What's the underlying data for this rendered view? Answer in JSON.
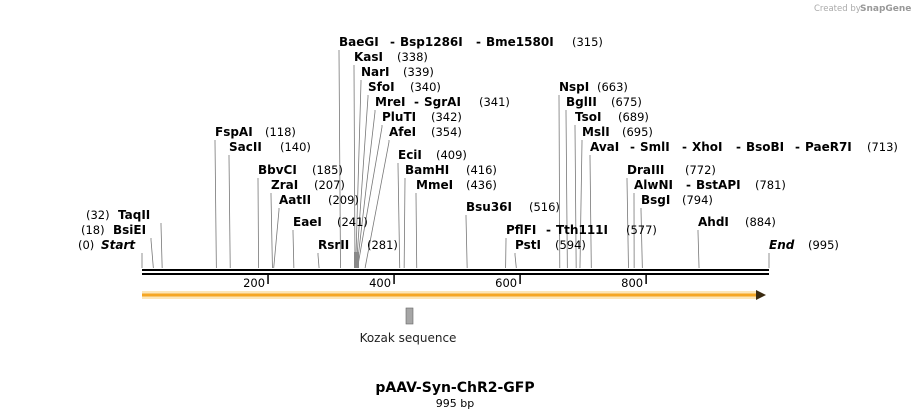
{
  "credit": {
    "prefix": "Created by",
    "brand": "SnapGene"
  },
  "map": {
    "length": 995,
    "title": "pAAV-Syn-ChR2-GFP",
    "subtitle": "995 bp",
    "start_label": "Start",
    "start_pos": "(0)",
    "end_label": "End",
    "end_pos": "(995)",
    "ruler_ticks": [
      {
        "pos": 200,
        "label": "200"
      },
      {
        "pos": 400,
        "label": "400"
      },
      {
        "pos": 600,
        "label": "600"
      },
      {
        "pos": 800,
        "label": "800"
      }
    ],
    "separator": "-",
    "sites": [
      {
        "names": [
          "BaeGI",
          "Bsp1286I",
          "Bme1580I"
        ],
        "pos": 315,
        "pos_label": "(315)"
      },
      {
        "names": [
          "KasI"
        ],
        "pos": 338,
        "pos_label": "(338)"
      },
      {
        "names": [
          "NarI"
        ],
        "pos": 339,
        "pos_label": "(339)"
      },
      {
        "names": [
          "SfoI"
        ],
        "pos": 340,
        "pos_label": "(340)"
      },
      {
        "names": [
          "MreI",
          "SgrAI"
        ],
        "pos": 341,
        "pos_label": "(341)"
      },
      {
        "names": [
          "PluTI"
        ],
        "pos": 342,
        "pos_label": "(342)"
      },
      {
        "names": [
          "AfeI"
        ],
        "pos": 354,
        "pos_label": "(354)"
      },
      {
        "names": [
          "FspAI"
        ],
        "pos": 118,
        "pos_label": "(118)"
      },
      {
        "names": [
          "SacII"
        ],
        "pos": 140,
        "pos_label": "(140)"
      },
      {
        "names": [
          "BbvCI"
        ],
        "pos": 185,
        "pos_label": "(185)"
      },
      {
        "names": [
          "ZraI"
        ],
        "pos": 207,
        "pos_label": "(207)"
      },
      {
        "names": [
          "AatII"
        ],
        "pos": 209,
        "pos_label": "(209)"
      },
      {
        "names": [
          "EaeI"
        ],
        "pos": 241,
        "pos_label": "(241)"
      },
      {
        "names": [
          "RsrII"
        ],
        "pos": 281,
        "pos_label": "(281)"
      },
      {
        "names": [
          "TaqII"
        ],
        "pos": 32,
        "pos_label": "(32)"
      },
      {
        "names": [
          "BsiEI"
        ],
        "pos": 18,
        "pos_label": "(18)"
      },
      {
        "names": [
          "EciI"
        ],
        "pos": 409,
        "pos_label": "(409)"
      },
      {
        "names": [
          "BamHI"
        ],
        "pos": 416,
        "pos_label": "(416)"
      },
      {
        "names": [
          "MmeI"
        ],
        "pos": 436,
        "pos_label": "(436)"
      },
      {
        "names": [
          "Bsu36I"
        ],
        "pos": 516,
        "pos_label": "(516)"
      },
      {
        "names": [
          "PflFI",
          "Tth111I"
        ],
        "pos": 577,
        "pos_label": "(577)"
      },
      {
        "names": [
          "PstI"
        ],
        "pos": 594,
        "pos_label": "(594)"
      },
      {
        "names": [
          "NspI"
        ],
        "pos": 663,
        "pos_label": "(663)"
      },
      {
        "names": [
          "BglII"
        ],
        "pos": 675,
        "pos_label": "(675)"
      },
      {
        "names": [
          "TsoI"
        ],
        "pos": 689,
        "pos_label": "(689)"
      },
      {
        "names": [
          "MslI"
        ],
        "pos": 695,
        "pos_label": "(695)"
      },
      {
        "names": [
          "AvaI",
          "SmlI",
          "XhoI",
          "BsoBI",
          "PaeR7I"
        ],
        "pos": 713,
        "pos_label": "(713)"
      },
      {
        "names": [
          "DraIII"
        ],
        "pos": 772,
        "pos_label": "(772)"
      },
      {
        "names": [
          "AlwNI",
          "BstAPI"
        ],
        "pos": 781,
        "pos_label": "(781)"
      },
      {
        "names": [
          "BsgI"
        ],
        "pos": 794,
        "pos_label": "(794)"
      },
      {
        "names": [
          "AhdI"
        ],
        "pos": 884,
        "pos_label": "(884)"
      }
    ],
    "features": [
      {
        "name": "Kozak sequence",
        "start": 426,
        "end": 437,
        "color": "#a6a6a6"
      }
    ],
    "orf": {
      "start": 0,
      "end": 995,
      "color": "#f5a623"
    }
  }
}
